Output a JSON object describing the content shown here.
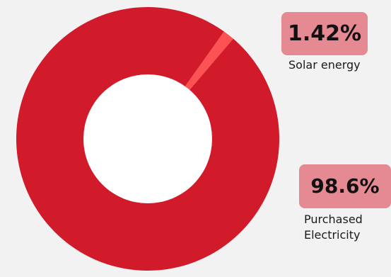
{
  "chart_data": {
    "type": "pie",
    "title": "",
    "donut": true,
    "series": [
      {
        "name": "Solar energy",
        "value": 1.42,
        "label": "1.42%",
        "color": "#fc5254"
      },
      {
        "name": "Purchased Electricity",
        "value": 98.6,
        "label": "98.6%",
        "color": "#d11a2a"
      }
    ]
  },
  "colors": {
    "background": "#f2f2f2",
    "badge": "#e58a93",
    "hole": "#ffffff"
  }
}
